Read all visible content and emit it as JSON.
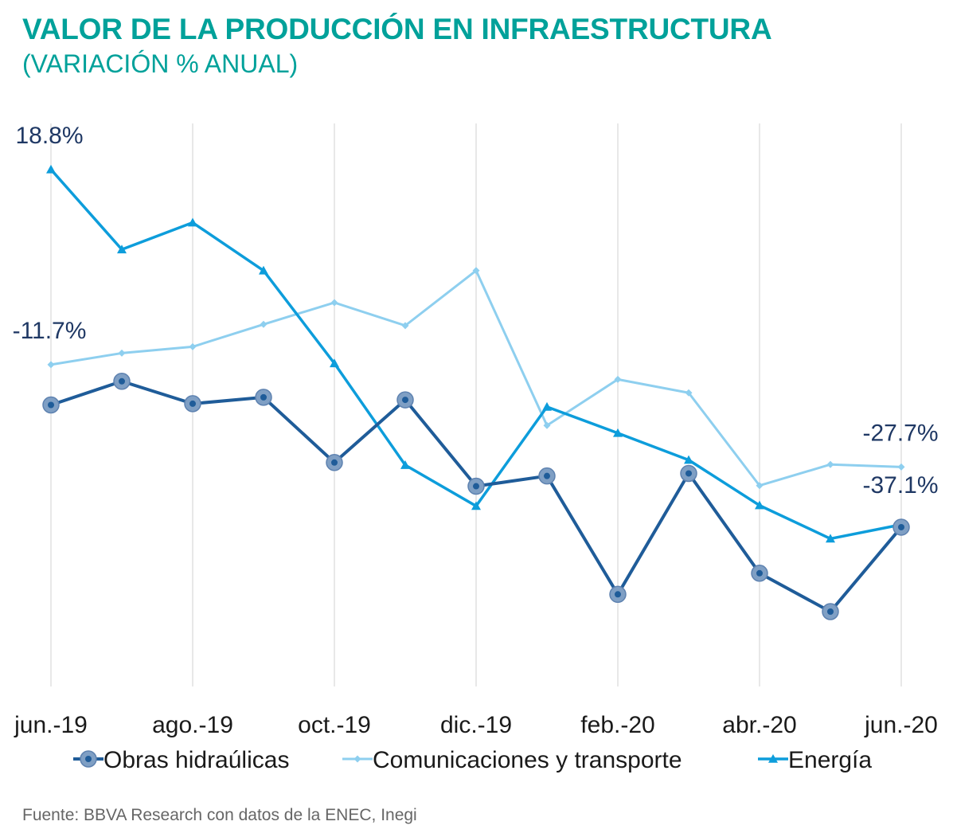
{
  "header": {
    "title": "VALOR DE LA PRODUCCIÓN EN INFRAESTRUCTURA",
    "subtitle": "(VARIACIÓN % ANUAL)"
  },
  "footer": {
    "source": "Fuente: BBVA Research con datos de la ENEC, Inegi"
  },
  "colors": {
    "title": "#00A19A",
    "obras": "#1F5C99",
    "obras_marker": "#7F9FC4",
    "comunicaciones": "#8ECFEF",
    "energia": "#0D9DDB",
    "grid": "#D9D9D9",
    "label": "#1F3864"
  },
  "chart_data": {
    "type": "line",
    "title": "VALOR DE LA PRODUCCIÓN EN INFRAESTRUCTURA",
    "subtitle": "(VARIACIÓN % ANUAL)",
    "xlabel": "",
    "ylabel": "",
    "ylim": [
      -62,
      26
    ],
    "grid": "vertical",
    "legend_position": "bottom",
    "x": [
      "jun.-19",
      "jul.-19",
      "ago.-19",
      "sep.-19",
      "oct.-19",
      "nov.-19",
      "dic.-19",
      "ene.-20",
      "feb.-20",
      "mar.-20",
      "abr.-20",
      "may.-20",
      "jun.-20"
    ],
    "tick_labels": [
      "jun.-19",
      "",
      "ago.-19",
      "",
      "oct.-19",
      "",
      "dic.-19",
      "",
      "feb.-20",
      "",
      "abr.-20",
      "",
      "jun.-20"
    ],
    "series": [
      {
        "name": "Obras hidraúlicas",
        "marker": "circle",
        "values": [
          -18.0,
          -14.3,
          -17.8,
          -16.8,
          -27.0,
          -17.2,
          -30.7,
          -29.1,
          -47.6,
          -28.7,
          -44.3,
          -50.3,
          -37.1
        ]
      },
      {
        "name": "Comunicaciones y transporte",
        "marker": "diamond",
        "values": [
          -11.7,
          -9.9,
          -8.9,
          -5.4,
          -2.0,
          -5.6,
          3.0,
          -21.2,
          -14.0,
          -16.1,
          -30.6,
          -27.3,
          -27.7
        ]
      },
      {
        "name": "Energía",
        "marker": "triangle",
        "values": [
          18.8,
          6.3,
          10.5,
          3.0,
          -11.5,
          -27.4,
          -33.8,
          -18.3,
          -22.4,
          -26.6,
          -33.7,
          -38.9,
          -36.7
        ]
      }
    ],
    "annotations": [
      {
        "text": "18.8%",
        "series": "Energía",
        "index": 0
      },
      {
        "text": "-11.7%",
        "series": "Comunicaciones y transporte",
        "index": 0
      },
      {
        "text": "-27.7%",
        "series": "Comunicaciones y transporte",
        "index": 12
      },
      {
        "text": "-37.1%",
        "series": "Obras hidraúlicas",
        "index": 12
      }
    ]
  }
}
